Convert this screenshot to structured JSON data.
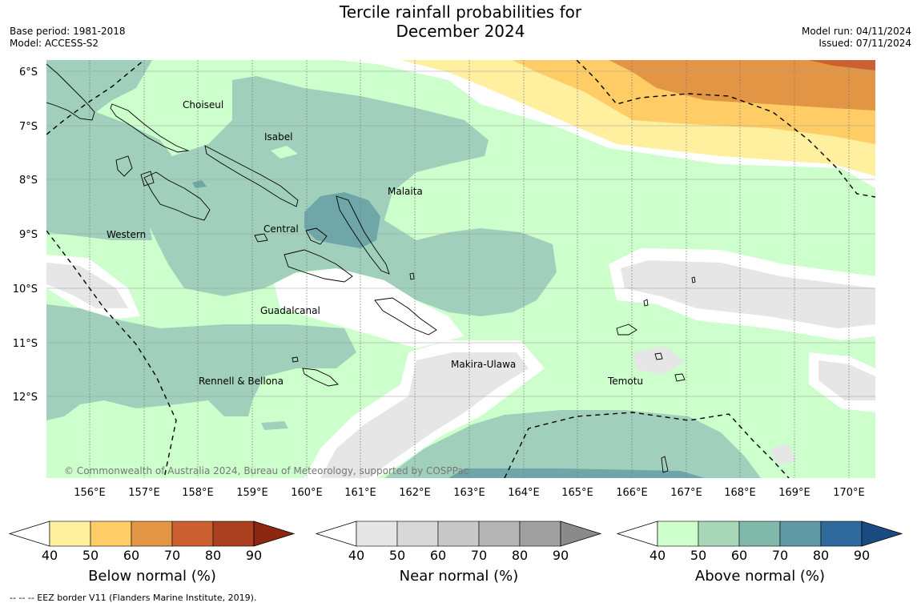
{
  "title_line1": "Tercile rainfall probabilities for",
  "title_line2": "December 2024",
  "base_period": "Base period: 1981-2018",
  "model": "Model: ACCESS-S2",
  "model_run": "Model run: 04/11/2024",
  "issued": "Issued: 07/11/2024",
  "copyright": "© Commonwealth of Australia 2024, Bureau of Meteorology, supported by COSPPac",
  "footer": "--  --  -- EEZ border V11 (Flanders Marine Institute, 2019).",
  "lat_labels": [
    "6°S",
    "7°S",
    "8°S",
    "9°S",
    "10°S",
    "11°S",
    "12°S"
  ],
  "lon_labels": [
    "156°E",
    "157°E",
    "158°E",
    "159°E",
    "160°E",
    "161°E",
    "162°E",
    "163°E",
    "164°E",
    "165°E",
    "166°E",
    "167°E",
    "168°E",
    "169°E",
    "170°E"
  ],
  "regions": [
    {
      "name": "Choiseul"
    },
    {
      "name": "Isabel"
    },
    {
      "name": "Malaita"
    },
    {
      "name": "Central"
    },
    {
      "name": "Western"
    },
    {
      "name": "Guadalcanal"
    },
    {
      "name": "Makira-Ulawa"
    },
    {
      "name": "Rennell & Bellona"
    },
    {
      "name": "Temotu"
    }
  ],
  "colorbars": [
    {
      "label": "Below normal (%)",
      "ticks": [
        "40",
        "50",
        "60",
        "70",
        "80",
        "90"
      ],
      "colors": [
        "#fff0a0",
        "#ffcc66",
        "#e29545",
        "#cc6030",
        "#aa4020",
        "#8c2810"
      ]
    },
    {
      "label": "Near normal (%)",
      "ticks": [
        "40",
        "50",
        "60",
        "70",
        "80",
        "90"
      ],
      "colors": [
        "#e6e6e6",
        "#d8d8d8",
        "#c8c8c8",
        "#b4b4b4",
        "#a0a0a0",
        "#8a8a8a"
      ]
    },
    {
      "label": "Above normal (%)",
      "ticks": [
        "40",
        "50",
        "60",
        "70",
        "80",
        "90"
      ],
      "colors": [
        "#ccffcc",
        "#a8d8b8",
        "#80b8aa",
        "#5f9aa6",
        "#306a9c",
        "#1a4c82"
      ]
    }
  ]
}
